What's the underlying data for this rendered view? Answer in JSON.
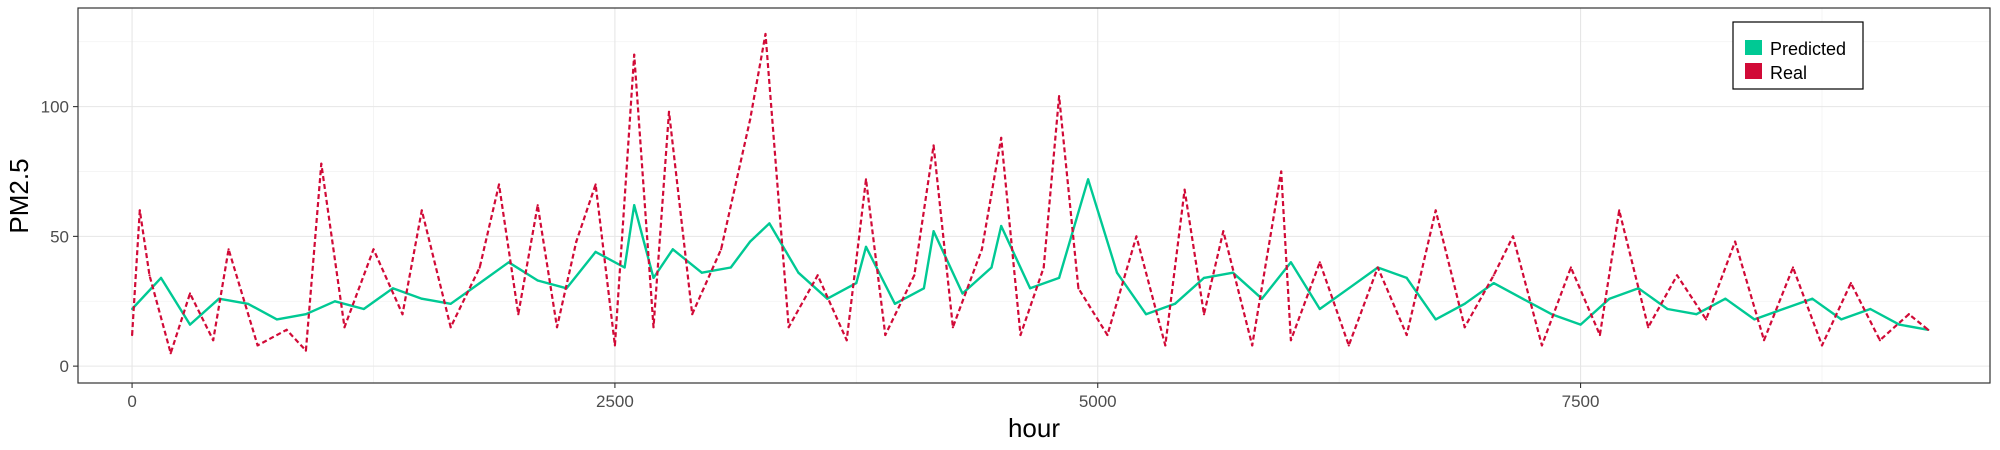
{
  "chart_data": {
    "type": "line",
    "title": "",
    "xlabel": "hour",
    "ylabel": "PM2.5",
    "xlim": [
      -280,
      9620
    ],
    "ylim": [
      -6.5,
      138
    ],
    "x_ticks": [
      0,
      2500,
      5000,
      7500
    ],
    "x_tick_labels": [
      "0",
      "2500",
      "5000",
      "7500"
    ],
    "y_ticks": [
      0,
      50,
      100
    ],
    "y_tick_labels": [
      "0",
      "50",
      "100"
    ],
    "grid": true,
    "legend": {
      "placement": "top-right",
      "entries": [
        "Predicted",
        "Real"
      ]
    },
    "series": [
      {
        "name": "Predicted",
        "color": "#00c994",
        "dash": "solid",
        "x": [
          0,
          150,
          300,
          450,
          600,
          750,
          900,
          1050,
          1200,
          1350,
          1500,
          1650,
          1800,
          1950,
          2100,
          2250,
          2400,
          2550,
          2600,
          2700,
          2800,
          2950,
          3100,
          3200,
          3300,
          3450,
          3600,
          3750,
          3800,
          3950,
          4100,
          4150,
          4300,
          4450,
          4500,
          4650,
          4800,
          4950,
          5100,
          5250,
          5400,
          5550,
          5700,
          5850,
          6000,
          6150,
          6300,
          6450,
          6600,
          6750,
          6900,
          7050,
          7200,
          7350,
          7500,
          7650,
          7800,
          7950,
          8100,
          8250,
          8400,
          8550,
          8700,
          8850,
          9000,
          9150,
          9300
        ],
        "values": [
          22,
          34,
          16,
          26,
          24,
          18,
          20,
          25,
          22,
          30,
          26,
          24,
          32,
          40,
          33,
          30,
          44,
          38,
          62,
          34,
          45,
          36,
          38,
          48,
          55,
          36,
          26,
          32,
          46,
          24,
          30,
          52,
          28,
          38,
          54,
          30,
          34,
          72,
          36,
          20,
          24,
          34,
          36,
          26,
          40,
          22,
          30,
          38,
          34,
          18,
          24,
          32,
          26,
          20,
          16,
          26,
          30,
          22,
          20,
          26,
          18,
          22,
          26,
          18,
          22,
          16,
          14
        ]
      },
      {
        "name": "Real",
        "color": "#d10a37",
        "dash": "dashed",
        "x": [
          0,
          40,
          90,
          200,
          300,
          420,
          500,
          650,
          800,
          900,
          980,
          1100,
          1250,
          1400,
          1500,
          1650,
          1800,
          1900,
          2000,
          2100,
          2200,
          2300,
          2400,
          2500,
          2600,
          2700,
          2780,
          2900,
          3050,
          3200,
          3280,
          3400,
          3550,
          3700,
          3800,
          3900,
          4050,
          4150,
          4250,
          4400,
          4500,
          4600,
          4720,
          4800,
          4900,
          5050,
          5200,
          5350,
          5450,
          5550,
          5650,
          5800,
          5950,
          6000,
          6150,
          6300,
          6450,
          6600,
          6750,
          6900,
          7050,
          7150,
          7300,
          7450,
          7600,
          7700,
          7850,
          8000,
          8150,
          8300,
          8450,
          8600,
          8750,
          8900,
          9050,
          9200,
          9300
        ],
        "values": [
          12,
          60,
          35,
          5,
          28,
          10,
          45,
          8,
          14,
          6,
          78,
          15,
          45,
          20,
          60,
          15,
          38,
          70,
          20,
          62,
          15,
          48,
          70,
          8,
          120,
          15,
          98,
          20,
          45,
          95,
          128,
          15,
          35,
          10,
          72,
          12,
          35,
          85,
          15,
          45,
          88,
          12,
          38,
          104,
          30,
          12,
          50,
          8,
          68,
          20,
          52,
          8,
          75,
          10,
          40,
          8,
          38,
          12,
          60,
          15,
          35,
          50,
          8,
          38,
          12,
          60,
          15,
          35,
          18,
          48,
          10,
          38,
          8,
          32,
          10,
          20,
          14
        ]
      }
    ]
  }
}
